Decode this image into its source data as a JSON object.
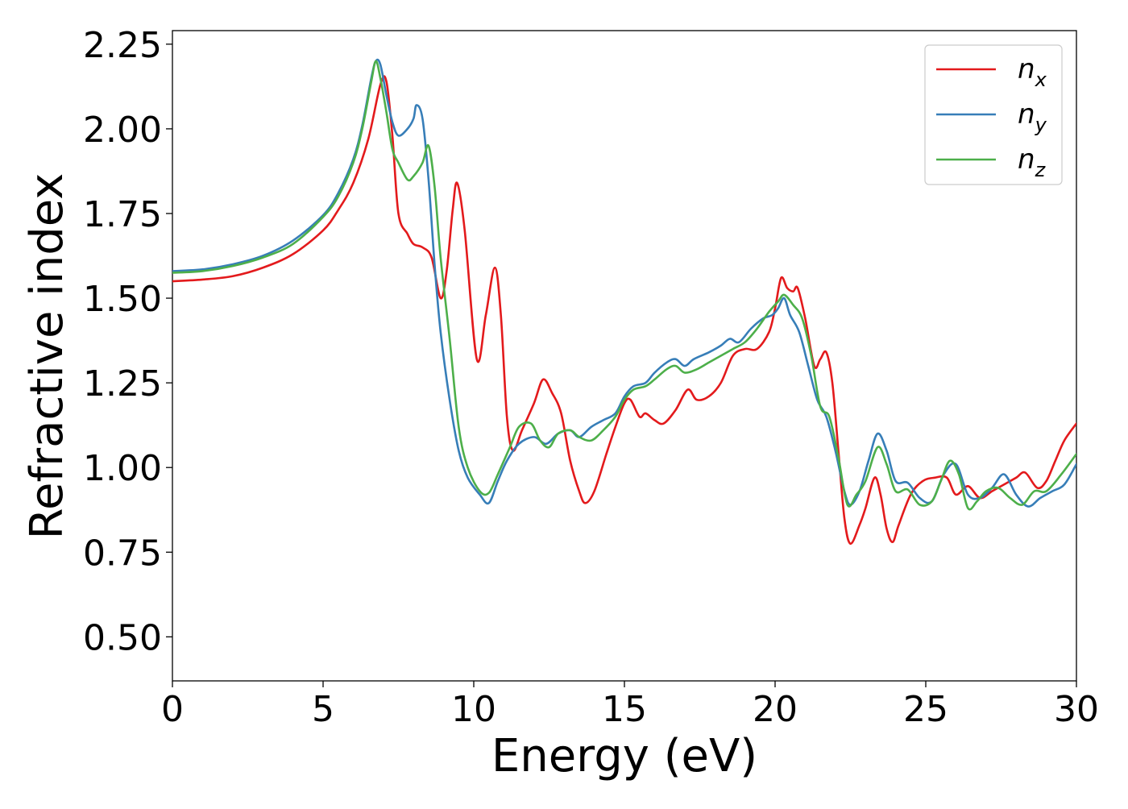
{
  "chart_data": {
    "type": "line",
    "xlabel": "Energy (eV)",
    "ylabel": "Refractive index",
    "xlim": [
      0,
      30
    ],
    "ylim": [
      0.37,
      2.29
    ],
    "x_ticks": [
      0,
      5,
      10,
      15,
      20,
      25,
      30
    ],
    "y_ticks": [
      0.5,
      0.75,
      1.0,
      1.25,
      1.5,
      1.75,
      2.0,
      2.25
    ],
    "x_tick_labels": [
      "0",
      "5",
      "10",
      "15",
      "20",
      "25",
      "30"
    ],
    "y_tick_labels": [
      "0.50",
      "0.75",
      "1.00",
      "1.25",
      "1.50",
      "1.75",
      "2.00",
      "2.25"
    ],
    "grid": false,
    "legend_position": "top-right",
    "series": [
      {
        "name": "n_x",
        "legend_main": "n",
        "legend_sub": "x",
        "color": "#e31a1c",
        "points": [
          [
            0,
            1.55
          ],
          [
            1,
            1.555
          ],
          [
            2,
            1.565
          ],
          [
            3,
            1.59
          ],
          [
            4,
            1.63
          ],
          [
            5,
            1.7
          ],
          [
            5.5,
            1.76
          ],
          [
            6,
            1.84
          ],
          [
            6.5,
            1.97
          ],
          [
            6.9,
            2.13
          ],
          [
            7.1,
            2.14
          ],
          [
            7.3,
            1.98
          ],
          [
            7.5,
            1.75
          ],
          [
            7.8,
            1.69
          ],
          [
            8.0,
            1.66
          ],
          [
            8.3,
            1.65
          ],
          [
            8.6,
            1.62
          ],
          [
            8.9,
            1.5
          ],
          [
            9.1,
            1.58
          ],
          [
            9.3,
            1.76
          ],
          [
            9.45,
            1.84
          ],
          [
            9.7,
            1.7
          ],
          [
            10.1,
            1.32
          ],
          [
            10.4,
            1.45
          ],
          [
            10.7,
            1.59
          ],
          [
            10.9,
            1.45
          ],
          [
            11.1,
            1.15
          ],
          [
            11.3,
            1.05
          ],
          [
            11.6,
            1.11
          ],
          [
            12.0,
            1.19
          ],
          [
            12.3,
            1.26
          ],
          [
            12.6,
            1.22
          ],
          [
            12.9,
            1.16
          ],
          [
            13.2,
            1.02
          ],
          [
            13.5,
            0.93
          ],
          [
            13.7,
            0.895
          ],
          [
            14.0,
            0.93
          ],
          [
            14.4,
            1.04
          ],
          [
            14.7,
            1.12
          ],
          [
            15.0,
            1.19
          ],
          [
            15.2,
            1.2
          ],
          [
            15.5,
            1.15
          ],
          [
            15.7,
            1.16
          ],
          [
            16.0,
            1.14
          ],
          [
            16.3,
            1.13
          ],
          [
            16.7,
            1.17
          ],
          [
            17.1,
            1.23
          ],
          [
            17.4,
            1.2
          ],
          [
            17.8,
            1.21
          ],
          [
            18.2,
            1.25
          ],
          [
            18.6,
            1.33
          ],
          [
            19.0,
            1.35
          ],
          [
            19.4,
            1.35
          ],
          [
            19.8,
            1.4
          ],
          [
            20.0,
            1.47
          ],
          [
            20.2,
            1.56
          ],
          [
            20.4,
            1.53
          ],
          [
            20.6,
            1.52
          ],
          [
            20.75,
            1.53
          ],
          [
            21.0,
            1.44
          ],
          [
            21.3,
            1.3
          ],
          [
            21.5,
            1.32
          ],
          [
            21.7,
            1.34
          ],
          [
            21.9,
            1.25
          ],
          [
            22.1,
            1.05
          ],
          [
            22.3,
            0.85
          ],
          [
            22.5,
            0.775
          ],
          [
            22.8,
            0.83
          ],
          [
            23.0,
            0.88
          ],
          [
            23.3,
            0.97
          ],
          [
            23.5,
            0.92
          ],
          [
            23.7,
            0.82
          ],
          [
            23.9,
            0.78
          ],
          [
            24.1,
            0.83
          ],
          [
            24.5,
            0.92
          ],
          [
            24.9,
            0.96
          ],
          [
            25.3,
            0.97
          ],
          [
            25.7,
            0.97
          ],
          [
            26.0,
            0.92
          ],
          [
            26.4,
            0.945
          ],
          [
            26.8,
            0.91
          ],
          [
            27.2,
            0.93
          ],
          [
            27.6,
            0.95
          ],
          [
            28.0,
            0.97
          ],
          [
            28.3,
            0.985
          ],
          [
            28.7,
            0.94
          ],
          [
            29.0,
            0.96
          ],
          [
            29.3,
            1.02
          ],
          [
            29.6,
            1.08
          ],
          [
            30,
            1.13
          ]
        ]
      },
      {
        "name": "n_y",
        "legend_main": "n",
        "legend_sub": "y",
        "color": "#377eb8",
        "points": [
          [
            0,
            1.58
          ],
          [
            1,
            1.585
          ],
          [
            2,
            1.6
          ],
          [
            3,
            1.625
          ],
          [
            4,
            1.67
          ],
          [
            5,
            1.745
          ],
          [
            5.5,
            1.81
          ],
          [
            6,
            1.91
          ],
          [
            6.3,
            2.01
          ],
          [
            6.6,
            2.15
          ],
          [
            6.75,
            2.2
          ],
          [
            6.9,
            2.19
          ],
          [
            7.1,
            2.1
          ],
          [
            7.3,
            2.02
          ],
          [
            7.5,
            1.98
          ],
          [
            7.8,
            2.0
          ],
          [
            8.0,
            2.03
          ],
          [
            8.1,
            2.07
          ],
          [
            8.3,
            2.03
          ],
          [
            8.5,
            1.85
          ],
          [
            8.7,
            1.6
          ],
          [
            8.9,
            1.4
          ],
          [
            9.2,
            1.2
          ],
          [
            9.5,
            1.05
          ],
          [
            9.8,
            0.97
          ],
          [
            10.2,
            0.92
          ],
          [
            10.5,
            0.895
          ],
          [
            10.8,
            0.96
          ],
          [
            11.1,
            1.02
          ],
          [
            11.5,
            1.07
          ],
          [
            12.0,
            1.09
          ],
          [
            12.4,
            1.07
          ],
          [
            12.8,
            1.1
          ],
          [
            13.2,
            1.11
          ],
          [
            13.5,
            1.09
          ],
          [
            13.9,
            1.12
          ],
          [
            14.3,
            1.14
          ],
          [
            14.7,
            1.16
          ],
          [
            15.0,
            1.21
          ],
          [
            15.3,
            1.24
          ],
          [
            15.7,
            1.25
          ],
          [
            16.0,
            1.28
          ],
          [
            16.4,
            1.31
          ],
          [
            16.7,
            1.32
          ],
          [
            17.0,
            1.3
          ],
          [
            17.3,
            1.32
          ],
          [
            17.8,
            1.34
          ],
          [
            18.2,
            1.36
          ],
          [
            18.5,
            1.38
          ],
          [
            18.8,
            1.37
          ],
          [
            19.2,
            1.41
          ],
          [
            19.6,
            1.44
          ],
          [
            19.9,
            1.45
          ],
          [
            20.1,
            1.47
          ],
          [
            20.3,
            1.5
          ],
          [
            20.5,
            1.45
          ],
          [
            20.8,
            1.4
          ],
          [
            21.1,
            1.3
          ],
          [
            21.4,
            1.2
          ],
          [
            21.7,
            1.15
          ],
          [
            22.0,
            1.05
          ],
          [
            22.3,
            0.93
          ],
          [
            22.5,
            0.89
          ],
          [
            22.8,
            0.93
          ],
          [
            23.1,
            1.02
          ],
          [
            23.4,
            1.1
          ],
          [
            23.7,
            1.05
          ],
          [
            24.0,
            0.96
          ],
          [
            24.4,
            0.955
          ],
          [
            24.8,
            0.91
          ],
          [
            25.2,
            0.9
          ],
          [
            25.6,
            0.98
          ],
          [
            26.0,
            1.01
          ],
          [
            26.4,
            0.92
          ],
          [
            26.8,
            0.91
          ],
          [
            27.2,
            0.94
          ],
          [
            27.6,
            0.98
          ],
          [
            28.0,
            0.92
          ],
          [
            28.4,
            0.885
          ],
          [
            28.8,
            0.91
          ],
          [
            29.2,
            0.93
          ],
          [
            29.6,
            0.95
          ],
          [
            30,
            1.01
          ]
        ]
      },
      {
        "name": "n_z",
        "legend_main": "n",
        "legend_sub": "z",
        "color": "#4daf4a",
        "points": [
          [
            0,
            1.575
          ],
          [
            1,
            1.58
          ],
          [
            2,
            1.595
          ],
          [
            3,
            1.62
          ],
          [
            4,
            1.66
          ],
          [
            5,
            1.74
          ],
          [
            5.5,
            1.8
          ],
          [
            6,
            1.9
          ],
          [
            6.3,
            2.0
          ],
          [
            6.6,
            2.14
          ],
          [
            6.75,
            2.2
          ],
          [
            6.9,
            2.15
          ],
          [
            7.1,
            2.05
          ],
          [
            7.3,
            1.94
          ],
          [
            7.5,
            1.9
          ],
          [
            7.8,
            1.85
          ],
          [
            8.0,
            1.86
          ],
          [
            8.3,
            1.9
          ],
          [
            8.5,
            1.95
          ],
          [
            8.7,
            1.83
          ],
          [
            8.9,
            1.62
          ],
          [
            9.2,
            1.38
          ],
          [
            9.5,
            1.12
          ],
          [
            9.8,
            1.0
          ],
          [
            10.2,
            0.93
          ],
          [
            10.5,
            0.925
          ],
          [
            10.8,
            0.98
          ],
          [
            11.2,
            1.06
          ],
          [
            11.5,
            1.12
          ],
          [
            11.9,
            1.13
          ],
          [
            12.2,
            1.08
          ],
          [
            12.5,
            1.06
          ],
          [
            12.8,
            1.1
          ],
          [
            13.2,
            1.11
          ],
          [
            13.5,
            1.09
          ],
          [
            13.9,
            1.08
          ],
          [
            14.3,
            1.11
          ],
          [
            14.7,
            1.15
          ],
          [
            15.0,
            1.2
          ],
          [
            15.3,
            1.23
          ],
          [
            15.7,
            1.24
          ],
          [
            16.0,
            1.26
          ],
          [
            16.4,
            1.29
          ],
          [
            16.7,
            1.3
          ],
          [
            17.0,
            1.28
          ],
          [
            17.4,
            1.29
          ],
          [
            17.8,
            1.31
          ],
          [
            18.2,
            1.33
          ],
          [
            18.6,
            1.35
          ],
          [
            19.0,
            1.37
          ],
          [
            19.4,
            1.41
          ],
          [
            19.8,
            1.46
          ],
          [
            20.1,
            1.49
          ],
          [
            20.3,
            1.51
          ],
          [
            20.6,
            1.48
          ],
          [
            20.9,
            1.44
          ],
          [
            21.2,
            1.33
          ],
          [
            21.5,
            1.18
          ],
          [
            21.8,
            1.15
          ],
          [
            22.1,
            1.03
          ],
          [
            22.4,
            0.89
          ],
          [
            22.7,
            0.92
          ],
          [
            23.0,
            0.96
          ],
          [
            23.4,
            1.06
          ],
          [
            23.7,
            1.01
          ],
          [
            24.0,
            0.93
          ],
          [
            24.4,
            0.935
          ],
          [
            24.8,
            0.89
          ],
          [
            25.2,
            0.9
          ],
          [
            25.5,
            0.96
          ],
          [
            25.8,
            1.02
          ],
          [
            26.1,
            0.98
          ],
          [
            26.4,
            0.88
          ],
          [
            26.7,
            0.9
          ],
          [
            27.0,
            0.93
          ],
          [
            27.4,
            0.94
          ],
          [
            27.8,
            0.91
          ],
          [
            28.2,
            0.89
          ],
          [
            28.6,
            0.93
          ],
          [
            29.0,
            0.93
          ],
          [
            29.5,
            0.98
          ],
          [
            30,
            1.04
          ]
        ]
      }
    ]
  }
}
